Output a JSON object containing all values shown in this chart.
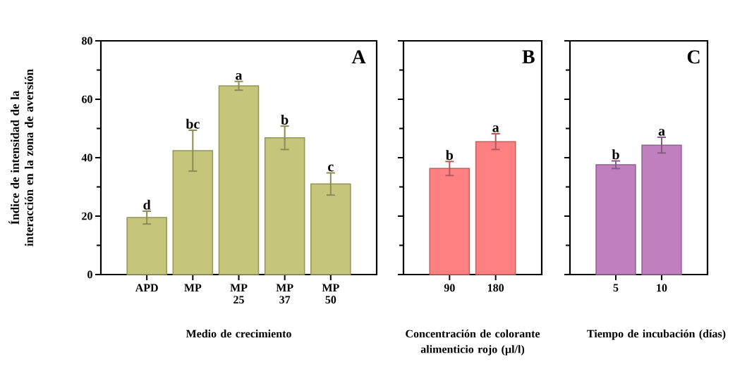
{
  "chart_data": [
    {
      "type": "bar",
      "categories": [
        "APD",
        "MP",
        "MP 25",
        "MP 37",
        "MP 50"
      ],
      "values": [
        19.5,
        42.4,
        64.6,
        46.8,
        31.0
      ],
      "errors": [
        2.2,
        7.0,
        1.5,
        4.0,
        3.8
      ],
      "color": "#c6c67a",
      "ylim": [
        0,
        80
      ],
      "yticks": [
        0,
        {
          "value": 10,
          "label": null
        },
        20,
        {
          "value": 30,
          "label": null
        },
        40,
        {
          "value": 50,
          "label": null
        },
        60,
        {
          "value": 70,
          "label": null
        },
        80
      ],
      "ylabel": "Índice de intensidad de la interacción en la zona de aversión",
      "xlabel": "Medio de crecimiento",
      "annotations": [
        "A",
        {
          "text": "d",
          "x": "APD",
          "y": 21.7
        },
        {
          "text": "bc",
          "x": "MP",
          "y": 49.4
        },
        {
          "text": "a",
          "x": "MP 25",
          "y": 66.1
        },
        {
          "text": "b",
          "x": "MP 37",
          "y": 50.8
        },
        {
          "text": "c",
          "x": "MP 50",
          "y": 34.8
        }
      ]
    },
    {
      "type": "bar",
      "categories": [
        "90",
        "180"
      ],
      "values": [
        36.3,
        45.5
      ],
      "errors": [
        2.4,
        2.7
      ],
      "color": "#ff8080",
      "ylim": [
        0,
        80
      ],
      "yticks": [
        0,
        {
          "value": 10,
          "label": null
        },
        20,
        {
          "value": 30,
          "label": null
        },
        40,
        {
          "value": 50,
          "label": null
        },
        60,
        {
          "value": 70,
          "label": null
        },
        80
      ],
      "tick_labels": "x",
      "xlabel": "Concentración de colorante alimenticio rojo (µl/l)",
      "annotations": [
        "B",
        {
          "text": "b",
          "x": "90",
          "y": 38.7
        },
        {
          "text": "a",
          "x": "180",
          "y": 48.2
        }
      ]
    },
    {
      "type": "bar",
      "categories": [
        "5",
        "10"
      ],
      "values": [
        37.6,
        44.3
      ],
      "errors": [
        1.3,
        2.7
      ],
      "color": "#c080c0",
      "ylim": [
        0,
        80
      ],
      "yticks": [
        0,
        {
          "value": 10,
          "label": null
        },
        20,
        {
          "value": 30,
          "label": null
        },
        40,
        {
          "value": 50,
          "label": null
        },
        60,
        {
          "value": 70,
          "label": null
        },
        80
      ],
      "tick_labels": "x",
      "xlabel": "Tiempo de incubación (días)",
      "annotations": [
        "C",
        {
          "text": "b",
          "x": "5",
          "y": 38.9
        },
        {
          "text": "a",
          "x": "10",
          "y": 47.0
        }
      ]
    }
  ]
}
